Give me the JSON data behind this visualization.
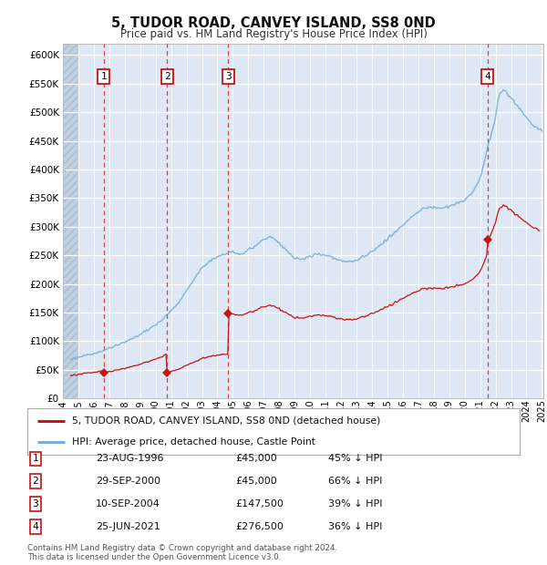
{
  "title": "5, TUDOR ROAD, CANVEY ISLAND, SS8 0ND",
  "subtitle": "Price paid vs. HM Land Registry's House Price Index (HPI)",
  "ylim": [
    0,
    620000
  ],
  "yticks": [
    0,
    50000,
    100000,
    150000,
    200000,
    250000,
    300000,
    350000,
    400000,
    450000,
    500000,
    550000,
    600000
  ],
  "ytick_labels": [
    "£0",
    "£50K",
    "£100K",
    "£150K",
    "£200K",
    "£250K",
    "£300K",
    "£350K",
    "£400K",
    "£450K",
    "£500K",
    "£550K",
    "£600K"
  ],
  "xlim_start": 1994.0,
  "xlim_end": 2025.08,
  "hpi_color": "#7aadd4",
  "price_color": "#cc1111",
  "dashed_line_color": "#cc3333",
  "bg_color": "#dde8f4",
  "hatch_color": "#c0d0e0",
  "grid_color": "#ffffff",
  "transactions": [
    {
      "num": 1,
      "date_x": 1996.644,
      "price": 45000,
      "label": "23-AUG-1996",
      "price_label": "£45,000",
      "pct": "45%"
    },
    {
      "num": 2,
      "date_x": 2000.747,
      "price": 45000,
      "label": "29-SEP-2000",
      "price_label": "£45,000",
      "pct": "66%"
    },
    {
      "num": 3,
      "date_x": 2004.692,
      "price": 147500,
      "label": "10-SEP-2004",
      "price_label": "£147,500",
      "pct": "39%"
    },
    {
      "num": 4,
      "date_x": 2021.481,
      "price": 276500,
      "label": "25-JUN-2021",
      "price_label": "£276,500",
      "pct": "36%"
    }
  ],
  "legend_property_label": "5, TUDOR ROAD, CANVEY ISLAND, SS8 0ND (detached house)",
  "legend_hpi_label": "HPI: Average price, detached house, Castle Point",
  "footer_line1": "Contains HM Land Registry data © Crown copyright and database right 2024.",
  "footer_line2": "This data is licensed under the Open Government Licence v3.0."
}
